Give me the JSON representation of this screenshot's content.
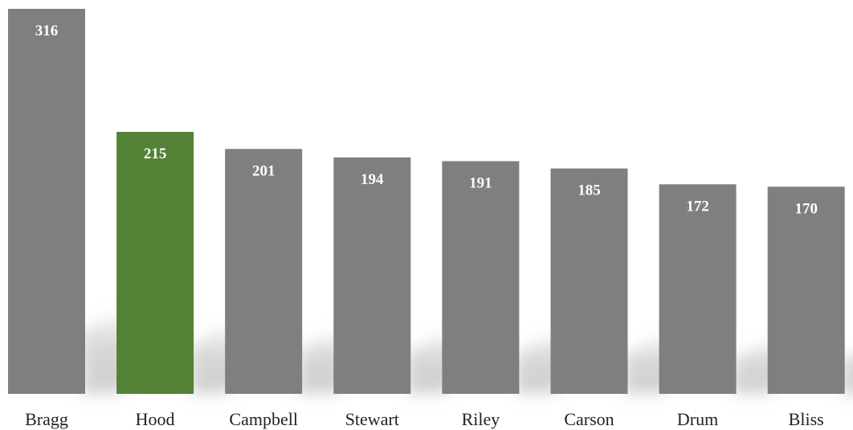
{
  "chart_data": {
    "type": "bar",
    "categories": [
      "Bragg",
      "Hood",
      "Campbell",
      "Stewart",
      "Riley",
      "Carson",
      "Drum",
      "Bliss"
    ],
    "values": [
      316,
      215,
      201,
      194,
      191,
      185,
      172,
      170
    ],
    "title": "",
    "xlabel": "",
    "ylabel": "",
    "ylim": [
      0,
      316
    ],
    "grid": false,
    "legend": "none",
    "colors": {
      "default": "#7f7f7f",
      "highlight": "#538135",
      "label": "#ffffff",
      "category_text": "#222222"
    },
    "highlight_category": "Hood"
  }
}
